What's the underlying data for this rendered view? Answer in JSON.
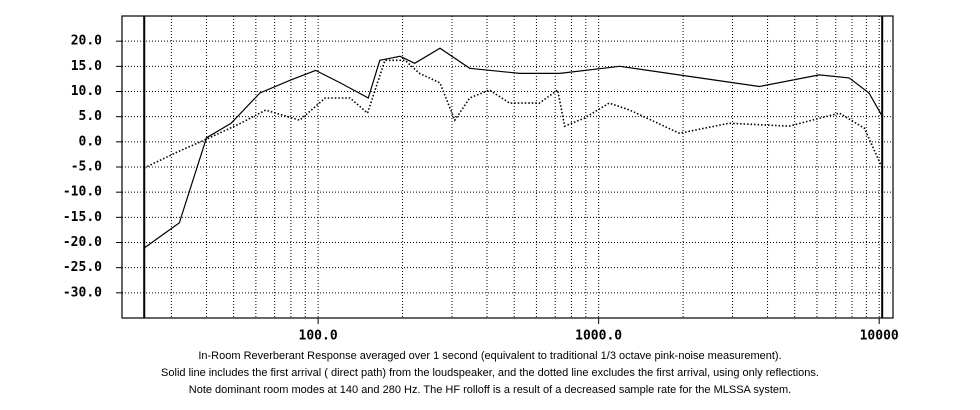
{
  "chart_data": {
    "type": "line",
    "log_x": true,
    "grid": true,
    "xlim": [
      20,
      11200
    ],
    "ylim": [
      -35,
      25
    ],
    "xticks": [
      {
        "value": 100,
        "label": "100.0"
      },
      {
        "value": 1000,
        "label": "1000.0"
      },
      10000
    ],
    "yticks": [
      {
        "value": 20,
        "label": "20.0"
      },
      {
        "value": 15,
        "label": "15.0"
      },
      {
        "value": 10,
        "label": "10.0"
      },
      {
        "value": 5,
        "label": "5.0"
      },
      {
        "value": 0,
        "label": "0.0"
      },
      {
        "value": -5,
        "label": "-5.0"
      },
      {
        "value": -10,
        "label": "-10.0"
      },
      {
        "value": -15,
        "label": "-15.0"
      },
      {
        "value": -20,
        "label": "-20.0"
      },
      {
        "value": -25,
        "label": "-25.0"
      },
      {
        "value": -30,
        "label": "-30.0"
      }
    ],
    "series": [
      {
        "color": "#000000",
        "style": "solid",
        "x": [
          24,
          32,
          40,
          49,
          62,
          80,
          98,
          120,
          151,
          166,
          196,
          221,
          272,
          347,
          523,
          727,
          1190,
          2290,
          3740,
          6110,
          7820,
          9200,
          10250
        ],
        "values": [
          -21.1,
          -16.1,
          0.8,
          3.7,
          9.7,
          12.3,
          14.2,
          11.7,
          8.7,
          16.2,
          17,
          15.6,
          18.6,
          14.6,
          13.6,
          13.6,
          15,
          12.7,
          11,
          13.3,
          12.7,
          9.7,
          5.1
        ]
      },
      {
        "color": "#000000",
        "style": "dotted",
        "x": [
          24,
          31,
          41,
          53,
          65,
          86,
          106,
          130,
          150,
          173,
          204,
          230,
          272,
          307,
          347,
          408,
          482,
          615,
          714,
          757,
          889,
          1090,
          1290,
          1940,
          2920,
          4770,
          7210,
          8860,
          10250
        ],
        "values": [
          -5.2,
          -2.2,
          0.8,
          3.7,
          6.3,
          4.3,
          8.7,
          8.7,
          5.7,
          16.2,
          16.2,
          13.6,
          11.7,
          4.3,
          8.7,
          10.3,
          7.7,
          7.7,
          10.3,
          3.1,
          4.7,
          7.7,
          6.3,
          1.7,
          3.7,
          3.1,
          5.7,
          2.7,
          -5.2
        ]
      }
    ],
    "caption": [
      "In-Room Reverberant Response averaged over 1 second (equivalent to traditional 1/3 octave pink-noise measurement).",
      "Solid line includes the first arrival ( direct path) from the loudspeaker, and the dotted line excludes the first arrival, using only reflections.",
      "Note dominant room modes at 140 and 280 Hz. The HF rolloff is a result of a  decreased sample rate for the MLSSA system."
    ]
  }
}
